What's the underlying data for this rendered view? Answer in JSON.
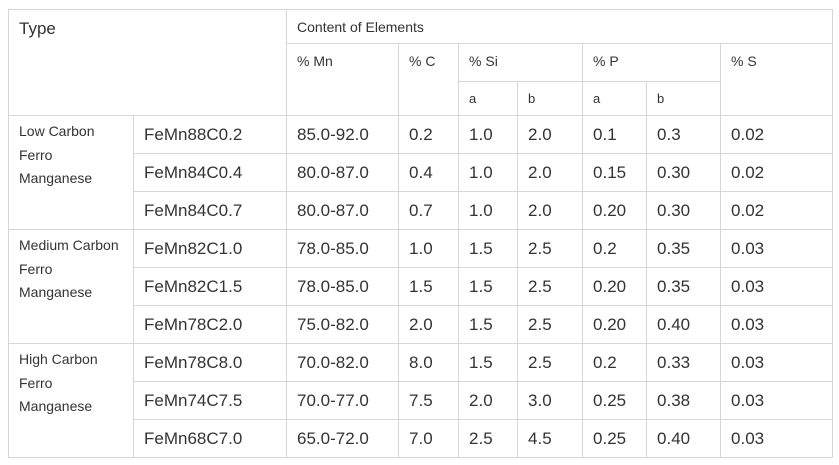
{
  "header": {
    "type": "Type",
    "content": "Content of Elements",
    "mn": "% Mn",
    "c": "% C",
    "si": "% Si",
    "p": "% P",
    "s": "% S",
    "si_a": "a",
    "si_b": "b",
    "p_a": "a",
    "p_b": "b"
  },
  "groups": [
    {
      "name": "Low Carbon Ferro Manganese",
      "rows": [
        {
          "grade": "FeMn88C0.2",
          "mn": "85.0-92.0",
          "c": "0.2",
          "si_a": "1.0",
          "si_b": "2.0",
          "p_a": "0.1",
          "p_b": "0.3",
          "s": "0.02"
        },
        {
          "grade": "FeMn84C0.4",
          "mn": "80.0-87.0",
          "c": "0.4",
          "si_a": "1.0",
          "si_b": "2.0",
          "p_a": "0.15",
          "p_b": "0.30",
          "s": "0.02"
        },
        {
          "grade": "FeMn84C0.7",
          "mn": "80.0-87.0",
          "c": "0.7",
          "si_a": "1.0",
          "si_b": "2.0",
          "p_a": "0.20",
          "p_b": "0.30",
          "s": "0.02"
        }
      ]
    },
    {
      "name": "Medium Carbon Ferro Manganese",
      "rows": [
        {
          "grade": "FeMn82C1.0",
          "mn": "78.0-85.0",
          "c": "1.0",
          "si_a": "1.5",
          "si_b": "2.5",
          "p_a": "0.2",
          "p_b": "0.35",
          "s": "0.03"
        },
        {
          "grade": "FeMn82C1.5",
          "mn": "78.0-85.0",
          "c": "1.5",
          "si_a": "1.5",
          "si_b": "2.5",
          "p_a": "0.20",
          "p_b": "0.35",
          "s": "0.03"
        },
        {
          "grade": "FeMn78C2.0",
          "mn": "75.0-82.0",
          "c": "2.0",
          "si_a": "1.5",
          "si_b": "2.5",
          "p_a": "0.20",
          "p_b": "0.40",
          "s": "0.03"
        }
      ]
    },
    {
      "name": "High Carbon Ferro Manganese",
      "rows": [
        {
          "grade": "FeMn78C8.0",
          "mn": "70.0-82.0",
          "c": "8.0",
          "si_a": "1.5",
          "si_b": "2.5",
          "p_a": "0.2",
          "p_b": "0.33",
          "s": "0.03"
        },
        {
          "grade": "FeMn74C7.5",
          "mn": "70.0-77.0",
          "c": "7.5",
          "si_a": "2.0",
          "si_b": "3.0",
          "p_a": "0.25",
          "p_b": "0.38",
          "s": "0.03"
        },
        {
          "grade": "FeMn68C7.0",
          "mn": "65.0-72.0",
          "c": "7.0",
          "si_a": "2.5",
          "si_b": "4.5",
          "p_a": "0.25",
          "p_b": "0.40",
          "s": "0.03"
        }
      ]
    }
  ]
}
